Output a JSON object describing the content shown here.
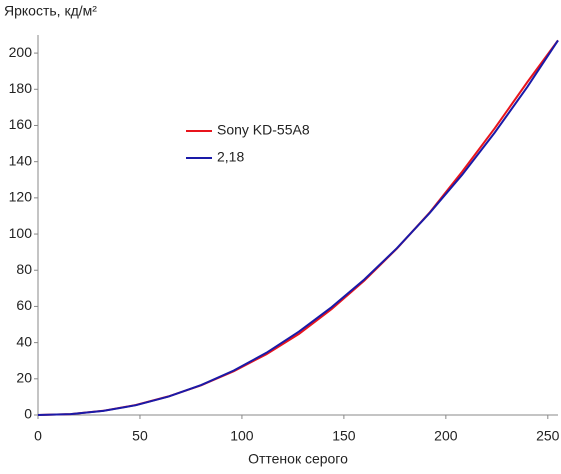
{
  "chart_data": {
    "type": "line",
    "ylabel": "Яркость, кд/м²",
    "xlabel": "Оттенок серого",
    "x": [
      0,
      16,
      32,
      48,
      64,
      80,
      96,
      112,
      128,
      144,
      160,
      176,
      192,
      208,
      224,
      240,
      255
    ],
    "series": [
      {
        "name": "Sony KD-55A8",
        "color": "#e8141c",
        "values": [
          0,
          0.5,
          2.3,
          5.5,
          10.3,
          16.4,
          24.2,
          33.6,
          44.8,
          58.5,
          74.2,
          92.0,
          111.8,
          134.5,
          158.5,
          184.0,
          207
        ]
      },
      {
        "name": "2,18",
        "color": "#1a1aa8",
        "values": [
          0,
          0.49,
          2.24,
          5.43,
          10.17,
          16.5,
          24.6,
          34.4,
          46.1,
          59.6,
          74.9,
          92.2,
          111.5,
          132.8,
          156.1,
          181.4,
          207
        ]
      }
    ],
    "xlim": [
      0,
      255
    ],
    "ylim": [
      0,
      210
    ],
    "xticks": [
      0,
      50,
      100,
      150,
      200,
      250
    ],
    "yticks": [
      0,
      20,
      40,
      60,
      80,
      100,
      120,
      140,
      160,
      180,
      200
    ]
  }
}
